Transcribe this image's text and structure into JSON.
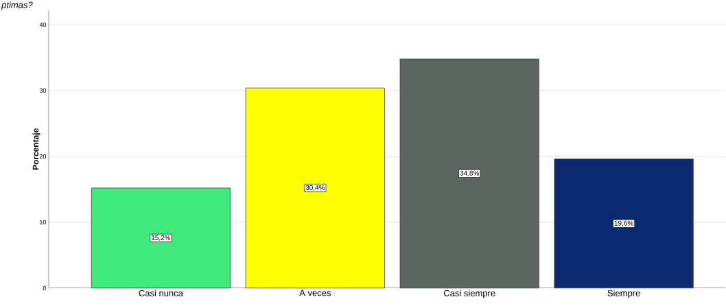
{
  "chart_data": {
    "type": "bar",
    "ylabel": "Porcentaje",
    "annotations": [
      "ptimas?"
    ],
    "categories": [
      "Casi nunca",
      "A veces",
      "Casi siempre",
      "Siempre"
    ],
    "values": [
      15.2,
      30.4,
      34.8,
      19.6
    ],
    "value_labels": [
      "15,2%",
      "30,4%",
      "34,8%",
      "19,6%"
    ],
    "colors": [
      "#41e87c",
      "#ffff00",
      "#5c6660",
      "#0d2873"
    ],
    "ylim": [
      0,
      42.2
    ],
    "yticks": [
      0,
      10,
      20,
      30,
      40
    ],
    "grid": "y"
  }
}
